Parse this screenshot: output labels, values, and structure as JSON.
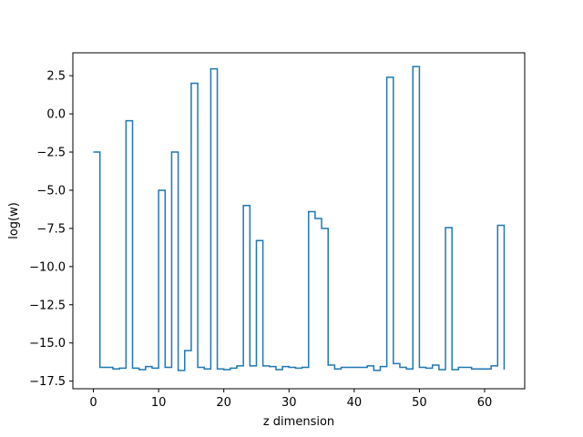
{
  "chart_data": {
    "type": "line",
    "drawstyle": "steps-post",
    "title": "",
    "xlabel": "z dimension",
    "ylabel": "log(w)",
    "xlim": [
      -3.15,
      66.15
    ],
    "ylim": [
      -18.0,
      4.0
    ],
    "xticks": [
      0,
      10,
      20,
      30,
      40,
      50,
      60
    ],
    "xtick_labels": [
      "0",
      "10",
      "20",
      "30",
      "40",
      "50",
      "60"
    ],
    "yticks": [
      -17.5,
      -15.0,
      -12.5,
      -10.0,
      -7.5,
      -5.0,
      -2.5,
      0.0,
      2.5
    ],
    "ytick_labels": [
      "−17.5",
      "−15.0",
      "−12.5",
      "−10.0",
      "−7.5",
      "−5.0",
      "−2.5",
      "0.0",
      "2.5"
    ],
    "grid": false,
    "legend": false,
    "line_color": "#1f77b4",
    "series": [
      {
        "x": [
          0,
          1,
          2,
          3,
          4,
          5,
          6,
          7,
          8,
          9,
          10,
          11,
          12,
          13,
          14,
          15,
          16,
          17,
          18,
          19,
          20,
          21,
          22,
          23,
          24,
          25,
          26,
          27,
          28,
          29,
          30,
          31,
          32,
          33,
          34,
          35,
          36,
          37,
          38,
          39,
          40,
          41,
          42,
          43,
          44,
          45,
          46,
          47,
          48,
          49,
          50,
          51,
          52,
          53,
          54,
          55,
          56,
          57,
          58,
          59,
          60,
          61,
          62,
          63
        ],
        "values": [
          -2.5,
          -16.6,
          -16.6,
          -16.7,
          -16.65,
          -0.45,
          -16.65,
          -16.75,
          -16.55,
          -16.65,
          -5.0,
          -16.6,
          -2.5,
          -16.8,
          -15.5,
          2.0,
          -16.6,
          -16.7,
          2.95,
          -16.7,
          -16.75,
          -16.65,
          -16.5,
          -6.0,
          -16.5,
          -8.3,
          -16.5,
          -16.55,
          -16.75,
          -16.55,
          -16.6,
          -16.65,
          -16.6,
          -6.4,
          -6.85,
          -7.5,
          -16.45,
          -16.7,
          -16.6,
          -16.6,
          -16.6,
          -16.6,
          -16.5,
          -16.8,
          -16.55,
          2.4,
          -16.35,
          -16.6,
          -16.7,
          3.1,
          -16.6,
          -16.65,
          -16.45,
          -16.75,
          -7.45,
          -16.75,
          -16.6,
          -16.6,
          -16.7,
          -16.7,
          -16.7,
          -16.5,
          -7.3,
          -16.75
        ]
      }
    ]
  }
}
